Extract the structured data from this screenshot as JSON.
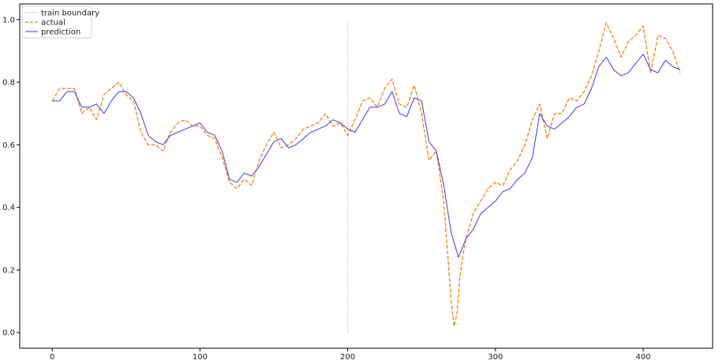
{
  "chart_data": {
    "type": "line",
    "title": "",
    "xlabel": "",
    "ylabel": "",
    "xlim": [
      -22,
      447
    ],
    "ylim": [
      -0.05,
      1.05
    ],
    "x_ticks": [
      0,
      100,
      200,
      300,
      400
    ],
    "y_ticks": [
      0.0,
      0.2,
      0.4,
      0.6,
      0.8,
      1.0
    ],
    "x_tick_labels": [
      "0",
      "100",
      "200",
      "300",
      "400"
    ],
    "y_tick_labels": [
      "0.0",
      "0.2",
      "0.4",
      "0.6",
      "0.8",
      "1.0"
    ],
    "grid": false,
    "legend_position": "top-left",
    "train_boundary": {
      "name": "train boundary",
      "x": 200,
      "y_range": [
        0.0,
        1.0
      ],
      "color": "#6ea6d6",
      "style": "dotted"
    },
    "series": [
      {
        "name": "actual",
        "color": "#ff7f0e",
        "style": "dashed",
        "x": [
          0,
          5,
          10,
          15,
          20,
          25,
          30,
          35,
          40,
          45,
          50,
          55,
          60,
          65,
          70,
          75,
          80,
          85,
          90,
          95,
          100,
          105,
          110,
          115,
          120,
          125,
          130,
          135,
          140,
          145,
          150,
          155,
          160,
          165,
          170,
          175,
          180,
          185,
          190,
          195,
          200,
          205,
          210,
          215,
          220,
          225,
          230,
          235,
          240,
          245,
          250,
          255,
          260,
          265,
          270,
          272,
          274,
          276,
          278,
          280,
          285,
          290,
          295,
          300,
          305,
          310,
          315,
          320,
          325,
          330,
          335,
          340,
          345,
          350,
          355,
          360,
          365,
          370,
          375,
          380,
          385,
          390,
          395,
          400,
          405,
          410,
          415,
          420,
          425
        ],
        "y": [
          0.74,
          0.78,
          0.78,
          0.78,
          0.7,
          0.72,
          0.68,
          0.76,
          0.78,
          0.8,
          0.76,
          0.74,
          0.64,
          0.6,
          0.6,
          0.58,
          0.64,
          0.67,
          0.68,
          0.66,
          0.66,
          0.63,
          0.62,
          0.56,
          0.48,
          0.46,
          0.49,
          0.47,
          0.55,
          0.6,
          0.64,
          0.59,
          0.6,
          0.62,
          0.65,
          0.66,
          0.67,
          0.7,
          0.66,
          0.67,
          0.63,
          0.68,
          0.74,
          0.75,
          0.72,
          0.78,
          0.81,
          0.73,
          0.72,
          0.79,
          0.7,
          0.55,
          0.58,
          0.42,
          0.1,
          0.02,
          0.06,
          0.18,
          0.25,
          0.3,
          0.38,
          0.42,
          0.46,
          0.48,
          0.47,
          0.52,
          0.55,
          0.6,
          0.68,
          0.73,
          0.62,
          0.7,
          0.7,
          0.75,
          0.74,
          0.77,
          0.82,
          0.9,
          0.99,
          0.94,
          0.88,
          0.93,
          0.95,
          0.98,
          0.83,
          0.95,
          0.94,
          0.9,
          0.83
        ]
      },
      {
        "name": "prediction",
        "color": "#3b3bf0",
        "style": "solid",
        "x": [
          0,
          5,
          10,
          15,
          20,
          25,
          30,
          35,
          40,
          45,
          50,
          55,
          60,
          65,
          70,
          75,
          80,
          85,
          90,
          95,
          100,
          105,
          110,
          115,
          120,
          125,
          130,
          135,
          140,
          145,
          150,
          155,
          160,
          165,
          170,
          175,
          180,
          185,
          190,
          195,
          200,
          205,
          210,
          215,
          220,
          225,
          230,
          235,
          240,
          245,
          250,
          255,
          260,
          265,
          270,
          275,
          280,
          285,
          290,
          295,
          300,
          305,
          310,
          315,
          320,
          325,
          330,
          335,
          340,
          345,
          350,
          355,
          360,
          365,
          370,
          375,
          380,
          385,
          390,
          395,
          400,
          405,
          410,
          415,
          420,
          425
        ],
        "y": [
          0.74,
          0.74,
          0.77,
          0.77,
          0.72,
          0.72,
          0.73,
          0.7,
          0.74,
          0.77,
          0.77,
          0.75,
          0.7,
          0.63,
          0.61,
          0.6,
          0.63,
          0.64,
          0.65,
          0.66,
          0.67,
          0.64,
          0.63,
          0.58,
          0.49,
          0.48,
          0.51,
          0.5,
          0.53,
          0.57,
          0.61,
          0.62,
          0.59,
          0.6,
          0.62,
          0.64,
          0.65,
          0.66,
          0.68,
          0.67,
          0.65,
          0.64,
          0.68,
          0.72,
          0.72,
          0.73,
          0.77,
          0.7,
          0.69,
          0.75,
          0.74,
          0.61,
          0.58,
          0.47,
          0.32,
          0.24,
          0.3,
          0.33,
          0.38,
          0.4,
          0.42,
          0.45,
          0.46,
          0.49,
          0.51,
          0.56,
          0.7,
          0.66,
          0.65,
          0.67,
          0.69,
          0.72,
          0.73,
          0.78,
          0.85,
          0.88,
          0.84,
          0.82,
          0.83,
          0.86,
          0.89,
          0.84,
          0.83,
          0.87,
          0.85,
          0.84
        ]
      }
    ]
  }
}
